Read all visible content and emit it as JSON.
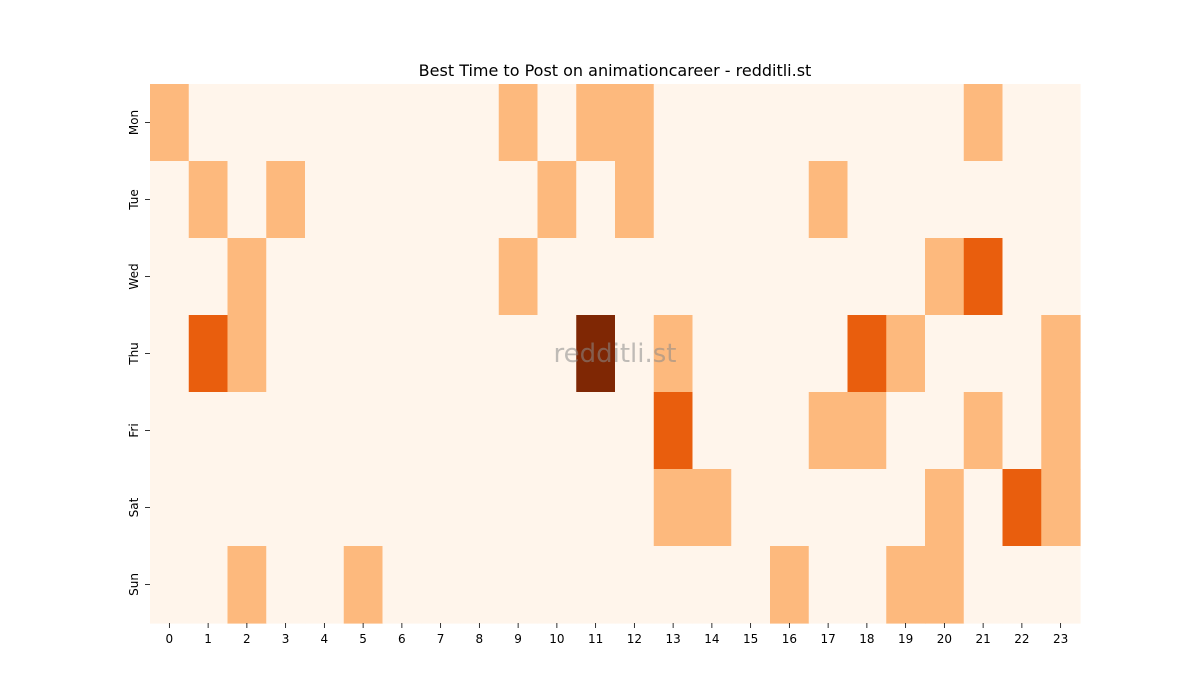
{
  "chart_data": {
    "type": "heatmap",
    "title": "Best Time to Post on animationcareer - redditli.st",
    "watermark": "redditli.st",
    "x": [
      "0",
      "1",
      "2",
      "3",
      "4",
      "5",
      "6",
      "7",
      "8",
      "9",
      "10",
      "11",
      "12",
      "13",
      "14",
      "15",
      "16",
      "17",
      "18",
      "19",
      "20",
      "21",
      "22",
      "23"
    ],
    "y": [
      "Mon",
      "Tue",
      "Wed",
      "Thu",
      "Fri",
      "Sat",
      "Sun"
    ],
    "values": [
      [
        1,
        0,
        0,
        0,
        0,
        0,
        0,
        0,
        0,
        1,
        0,
        1,
        1,
        0,
        0,
        0,
        0,
        0,
        0,
        0,
        0,
        1,
        0,
        0
      ],
      [
        0,
        1,
        0,
        1,
        0,
        0,
        0,
        0,
        0,
        0,
        1,
        0,
        1,
        0,
        0,
        0,
        0,
        1,
        0,
        0,
        0,
        0,
        0,
        0
      ],
      [
        0,
        0,
        1,
        0,
        0,
        0,
        0,
        0,
        0,
        1,
        0,
        0,
        0,
        0,
        0,
        0,
        0,
        0,
        0,
        0,
        1,
        2,
        0,
        0
      ],
      [
        0,
        2,
        1,
        0,
        0,
        0,
        0,
        0,
        0,
        0,
        0,
        3,
        0,
        1,
        0,
        0,
        0,
        0,
        2,
        1,
        0,
        0,
        0,
        1
      ],
      [
        0,
        0,
        0,
        0,
        0,
        0,
        0,
        0,
        0,
        0,
        0,
        0,
        0,
        2,
        0,
        0,
        0,
        1,
        1,
        0,
        0,
        1,
        0,
        1
      ],
      [
        0,
        0,
        0,
        0,
        0,
        0,
        0,
        0,
        0,
        0,
        0,
        0,
        0,
        1,
        1,
        0,
        0,
        0,
        0,
        0,
        1,
        0,
        2,
        1
      ],
      [
        0,
        0,
        1,
        0,
        0,
        1,
        0,
        0,
        0,
        0,
        0,
        0,
        0,
        0,
        0,
        0,
        1,
        0,
        0,
        1,
        1,
        0,
        0,
        0
      ]
    ],
    "colors": [
      "#fff5eb",
      "#fdb97d",
      "#e95e0d",
      "#7f2704"
    ],
    "colorbar": false,
    "grid": false
  }
}
